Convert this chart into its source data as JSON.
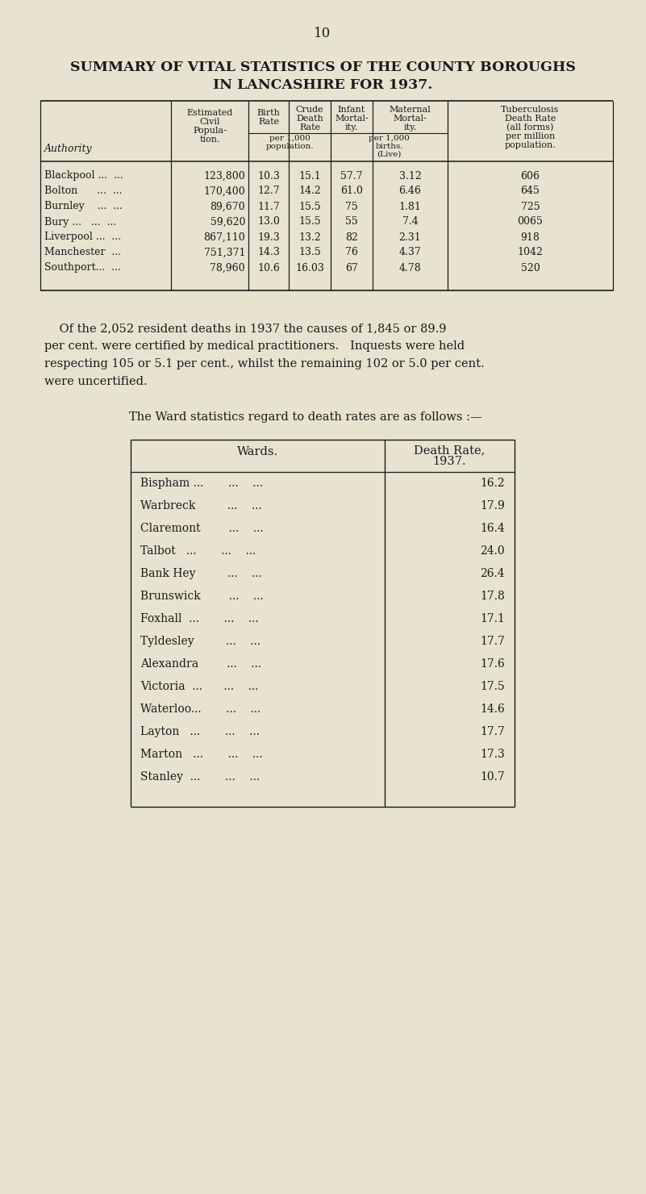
{
  "page_number": "10",
  "title_line1": "SUMMARY OF VITAL STATISTICS OF THE COUNTY BOROUGHS",
  "title_line2": "IN LANCASHIRE FOR 1937.",
  "bg_color": "#e8e3d0",
  "text_color": "#1a1a1a",
  "table1_rows": [
    [
      "Blackpool ...  ...",
      "123,800",
      "10.3",
      "15.1",
      "57.7",
      "3.12",
      "606"
    ],
    [
      "Bolton      ...  ...",
      "170,400",
      "12.7",
      "14.2",
      "61.0",
      "6.46",
      "645"
    ],
    [
      "Burnley    ...  ...",
      "89,670",
      "11.7",
      "15.5",
      "75",
      "1.81",
      "725"
    ],
    [
      "Bury ...   ...  ...",
      "59,620",
      "13.0",
      "15.5",
      "55",
      "7.4",
      "0065"
    ],
    [
      "Liverpool ...  ...",
      "867,110",
      "19.3",
      "13.2",
      "82",
      "2.31",
      "918"
    ],
    [
      "Manchester  ...",
      "751,371",
      "14.3",
      "13.5",
      "76",
      "4.37",
      "1042"
    ],
    [
      "Southport...  ...",
      "78,960",
      "10.6",
      "16.03",
      "67",
      "4.78",
      "520"
    ]
  ],
  "para_lines": [
    "    Of the 2,052 resident deaths in 1937 the causes of 1,845 or 89.9",
    "per cent. were certified by medical practitioners.   Inquests were held",
    "respecting 105 or 5.1 per cent., whilst the remaining 102 or 5.0 per cent.",
    "were uncertified."
  ],
  "ward_intro": "The Ward statistics regard to death rates are as follows :—",
  "ward_rows": [
    [
      "Bispham ...       ...    ...",
      "16.2"
    ],
    [
      "Warbreck         ...    ...",
      "17.9"
    ],
    [
      "Claremont        ...    ...",
      "16.4"
    ],
    [
      "Talbot   ...       ...    ...",
      "24.0"
    ],
    [
      "Bank Hey         ...    ...",
      "26.4"
    ],
    [
      "Brunswick        ...    ...",
      "17.8"
    ],
    [
      "Foxhall  ...       ...    ...",
      "17.1"
    ],
    [
      "Tyldesley         ...    ...",
      "17.7"
    ],
    [
      "Alexandra        ...    ...",
      "17.6"
    ],
    [
      "Victoria  ...      ...    ...",
      "17.5"
    ],
    [
      "Waterloo...       ...    ...",
      "14.6"
    ],
    [
      "Layton   ...       ...    ...",
      "17.7"
    ],
    [
      "Marton   ...       ...    ...",
      "17.3"
    ],
    [
      "Stanley  ...       ...    ...",
      "10.7"
    ]
  ]
}
